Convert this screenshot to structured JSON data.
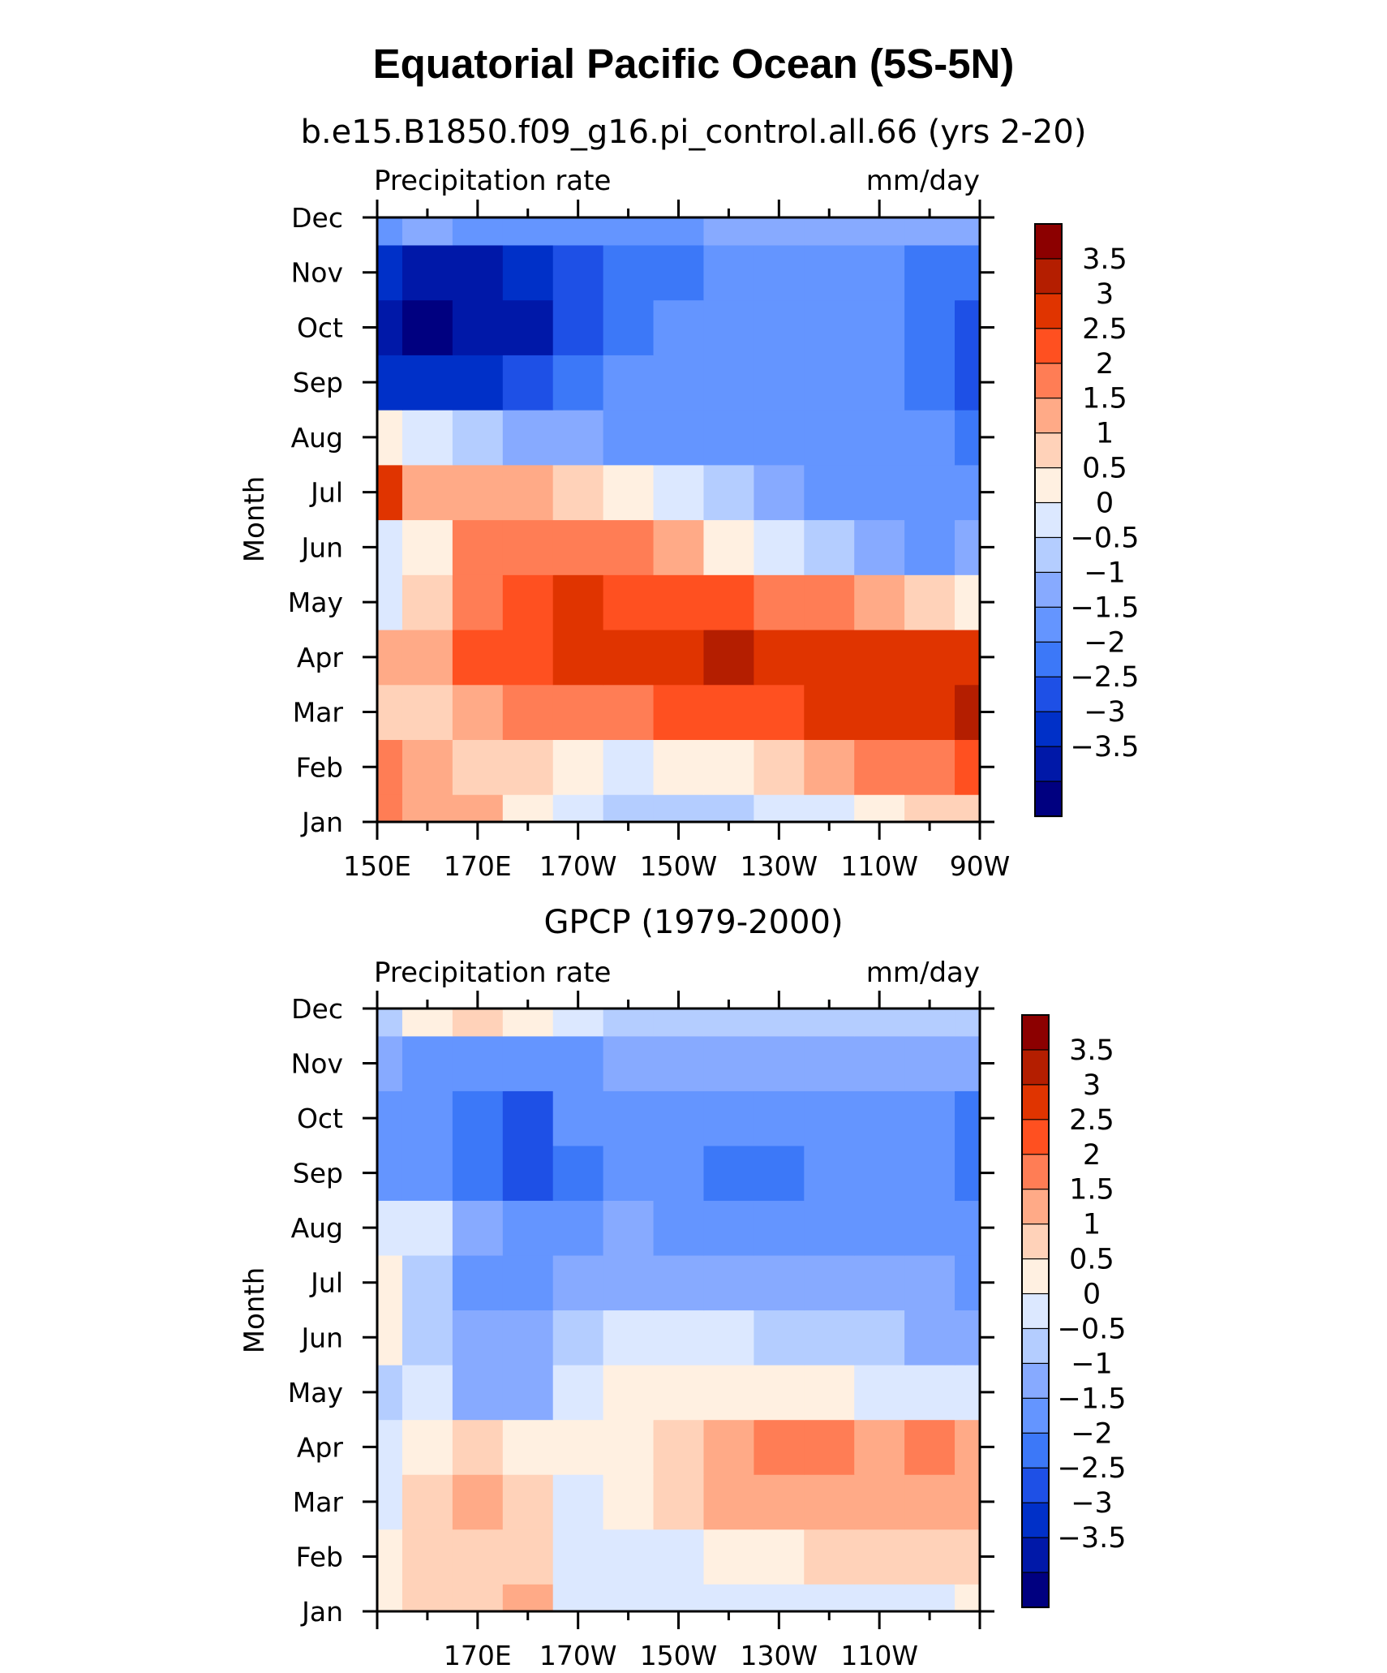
{
  "title": "Equatorial Pacific Ocean (5S-5N)",
  "palette": [
    "#000080",
    "#0018a8",
    "#0030c8",
    "#1e50e6",
    "#3c78f8",
    "#6495ff",
    "#87aaff",
    "#b4cdff",
    "#dce8ff",
    "#fff0e1",
    "#ffd2b9",
    "#ffaa87",
    "#ff7d55",
    "#ff5020",
    "#e03400",
    "#b41e00",
    "#8c0000"
  ],
  "chart_data": [
    {
      "type": "heatmap",
      "title": "b.e15.B1850.f09_g16.pi_control.all.66 (yrs 2-20)",
      "left_label": "Precipitation rate",
      "right_label": "mm/day",
      "ylabel": "Month",
      "x": [
        150,
        160,
        170,
        180,
        190,
        200,
        210,
        220,
        230,
        240,
        250,
        260,
        270
      ],
      "xticks": [
        150,
        170,
        190,
        210,
        230,
        250,
        270
      ],
      "xtick_labels": [
        "150E",
        "170E",
        "170W",
        "150W",
        "130W",
        "110W",
        "90W"
      ],
      "months": [
        "Jan",
        "Feb",
        "Mar",
        "Apr",
        "May",
        "Jun",
        "Jul",
        "Aug",
        "Sep",
        "Oct",
        "Nov",
        "Dec"
      ],
      "xlim": [
        150,
        270
      ],
      "colorbar_levels": [
        "3.5",
        "3",
        "2.5",
        "2",
        "1.5",
        "1",
        "0.5",
        "0",
        "-0.5",
        "-1",
        "-1.5",
        "-2",
        "-2.5",
        "-3",
        "-3.5"
      ],
      "values": [
        [
          2.0,
          1.8,
          1.5,
          0.8,
          0.2,
          -0.2,
          -0.4,
          -0.2,
          0.0,
          0.4,
          0.8,
          1.2,
          1.3
        ],
        [
          2.2,
          1.6,
          1.2,
          1.0,
          0.6,
          0.4,
          0.5,
          0.8,
          1.2,
          1.6,
          2.0,
          2.2,
          2.5
        ],
        [
          1.2,
          1.0,
          1.5,
          2.0,
          2.2,
          2.3,
          2.5,
          2.7,
          2.9,
          3.0,
          3.1,
          3.3,
          3.5
        ],
        [
          1.8,
          1.5,
          2.5,
          2.8,
          3.1,
          3.2,
          3.3,
          3.5,
          3.4,
          3.3,
          3.1,
          3.0,
          3.2
        ],
        [
          0.2,
          1.2,
          2.4,
          2.8,
          3.0,
          2.9,
          2.7,
          2.5,
          2.3,
          2.0,
          1.6,
          1.2,
          0.7
        ],
        [
          0.0,
          0.5,
          2.0,
          2.4,
          2.3,
          2.0,
          1.5,
          0.9,
          0.3,
          -0.3,
          -0.7,
          -1.1,
          -1.0
        ],
        [
          3.2,
          1.8,
          1.6,
          1.6,
          1.2,
          0.8,
          0.2,
          -0.4,
          -0.9,
          -1.2,
          -1.3,
          -1.4,
          -1.3
        ],
        [
          0.6,
          0.2,
          -0.3,
          -0.6,
          -0.9,
          -1.1,
          -1.3,
          -1.4,
          -1.4,
          -1.5,
          -1.5,
          -1.5,
          -1.8
        ],
        [
          -2.7,
          -3.0,
          -2.9,
          -2.5,
          -2.0,
          -1.5,
          -1.4,
          -1.4,
          -1.5,
          -1.5,
          -1.5,
          -1.6,
          -2.1
        ],
        [
          -3.4,
          -3.6,
          -3.5,
          -3.1,
          -2.4,
          -1.9,
          -1.5,
          -1.4,
          -1.4,
          -1.5,
          -1.5,
          -1.6,
          -2.2
        ],
        [
          -3.0,
          -3.3,
          -3.2,
          -2.7,
          -2.1,
          -1.8,
          -1.6,
          -1.5,
          -1.5,
          -1.5,
          -1.5,
          -1.6,
          -2.0
        ],
        [
          -1.1,
          -1.0,
          -1.1,
          -1.3,
          -1.3,
          -1.2,
          -1.1,
          -0.9,
          -0.8,
          -0.8,
          -0.7,
          -0.6,
          -0.6
        ]
      ]
    },
    {
      "type": "heatmap",
      "title": "GPCP (1979-2000)",
      "left_label": "Precipitation rate",
      "right_label": "mm/day",
      "ylabel": "Month",
      "x": [
        150,
        160,
        170,
        180,
        190,
        200,
        210,
        220,
        230,
        240,
        250,
        260,
        270
      ],
      "xticks": [
        170,
        190,
        210,
        230,
        250
      ],
      "xtick_labels": [
        "170E",
        "170W",
        "150W",
        "130W",
        "110W"
      ],
      "months": [
        "Jan",
        "Feb",
        "Mar",
        "Apr",
        "May",
        "Jun",
        "Jul",
        "Aug",
        "Sep",
        "Oct",
        "Nov",
        "Dec"
      ],
      "xlim": [
        150,
        270
      ],
      "colorbar_levels": [
        "3.5",
        "3",
        "2.5",
        "2",
        "1.5",
        "1",
        "0.5",
        "0",
        "-0.5",
        "-1",
        "-1.5",
        "-2",
        "-2.5",
        "-3",
        "-3.5"
      ],
      "values": [
        [
          0.8,
          1.1,
          1.3,
          1.6,
          0.2,
          0.1,
          0.0,
          0.1,
          0.0,
          0.2,
          0.3,
          0.4,
          0.8
        ],
        [
          0.8,
          1.0,
          1.4,
          1.2,
          0.3,
          0.3,
          0.4,
          0.6,
          0.8,
          1.0,
          1.2,
          1.4,
          1.4
        ],
        [
          0.4,
          1.1,
          1.6,
          1.3,
          0.4,
          0.6,
          1.3,
          1.6,
          1.9,
          1.8,
          1.6,
          1.8,
          1.6
        ],
        [
          0.4,
          0.9,
          1.2,
          0.9,
          0.8,
          0.9,
          1.4,
          1.7,
          2.1,
          2.1,
          1.6,
          2.0,
          1.5
        ],
        [
          -0.3,
          0.3,
          -0.8,
          -0.7,
          0.4,
          0.6,
          0.7,
          0.7,
          0.7,
          0.6,
          0.4,
          0.2,
          0.0
        ],
        [
          0.6,
          -0.3,
          -1.0,
          -1.0,
          -0.5,
          0.3,
          0.2,
          0.1,
          -0.2,
          -0.4,
          -0.5,
          -0.6,
          -0.6
        ],
        [
          0.7,
          -0.2,
          -1.1,
          -1.1,
          -1.0,
          -0.7,
          -0.6,
          -0.7,
          -0.8,
          -0.9,
          -0.9,
          -1.0,
          -1.5
        ],
        [
          0.4,
          0.1,
          -0.9,
          -1.2,
          -1.1,
          -0.9,
          -1.1,
          -1.3,
          -1.4,
          -1.3,
          -1.1,
          -1.3,
          -1.4
        ],
        [
          -1.2,
          -1.5,
          -1.6,
          -2.1,
          -1.6,
          -1.2,
          -1.4,
          -1.6,
          -1.6,
          -1.4,
          -1.1,
          -1.4,
          -1.7
        ],
        [
          -1.1,
          -1.3,
          -1.7,
          -2.1,
          -1.5,
          -1.1,
          -1.3,
          -1.5,
          -1.5,
          -1.3,
          -1.1,
          -1.4,
          -1.7
        ],
        [
          -0.8,
          -1.2,
          -1.1,
          -1.2,
          -1.1,
          -1.0,
          -0.8,
          -0.8,
          -0.9,
          -0.8,
          -0.8,
          -0.8,
          -0.9
        ],
        [
          -0.2,
          0.5,
          1.2,
          0.9,
          0.4,
          -0.3,
          -0.4,
          -0.4,
          -0.3,
          -0.4,
          -0.4,
          -0.3,
          -0.3
        ]
      ]
    }
  ]
}
